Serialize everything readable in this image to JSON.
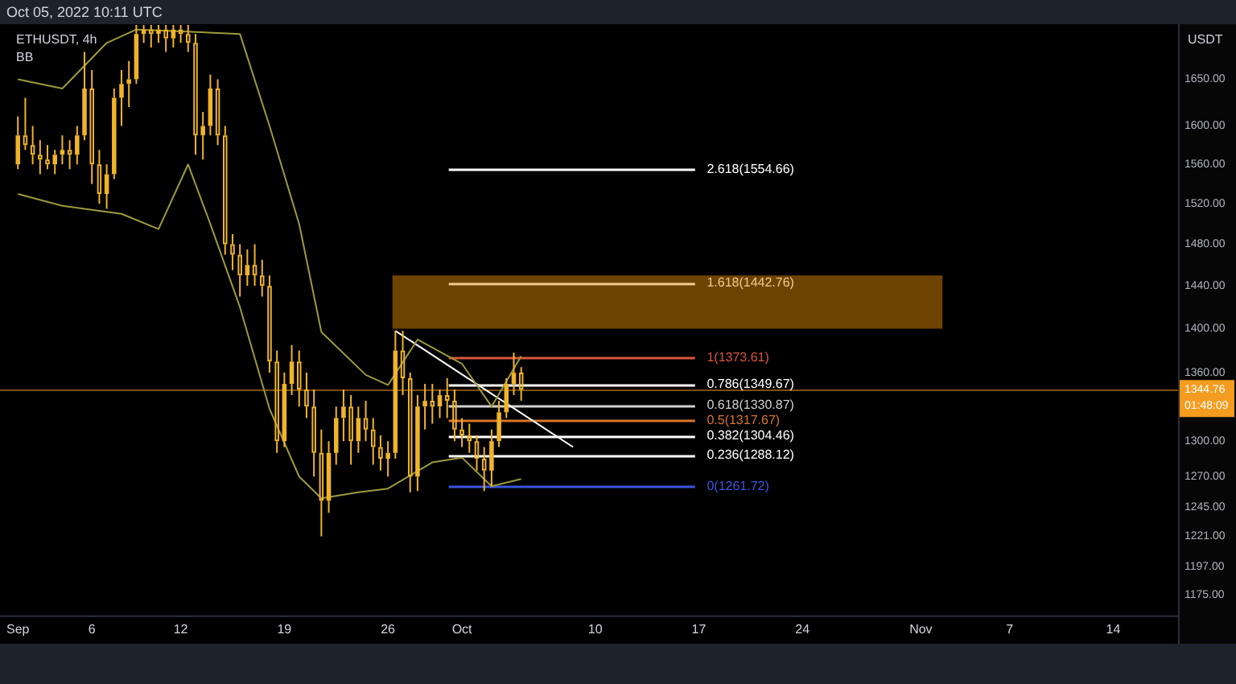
{
  "chart_data": {
    "type": "candlestick",
    "title": "ETHUSDT, 4h",
    "subtitle": "Oct 05, 2022 10:11 UTC",
    "ylabel": "USDT",
    "color": "#f0b429",
    "annotations": [
      "BB",
      "01:48:09"
    ],
    "x": [
      "2022-09-01T00:00",
      "2022-09-01T12:00",
      "2022-09-02T00:00",
      "2022-09-02T12:00",
      "2022-09-03T00:00",
      "2022-09-03T12:00",
      "2022-09-04T00:00",
      "2022-09-04T12:00",
      "2022-09-05T00:00",
      "2022-09-05T12:00",
      "2022-09-06T00:00",
      "2022-09-06T12:00",
      "2022-09-07T00:00",
      "2022-09-07T12:00",
      "2022-09-08T00:00",
      "2022-09-08T12:00",
      "2022-09-09T00:00",
      "2022-09-09T12:00",
      "2022-09-10T00:00",
      "2022-09-10T12:00",
      "2022-09-11T00:00",
      "2022-09-11T12:00",
      "2022-09-12T00:00",
      "2022-09-12T12:00",
      "2022-09-13T00:00",
      "2022-09-13T12:00",
      "2022-09-14T00:00",
      "2022-09-14T12:00",
      "2022-09-15T00:00",
      "2022-09-15T12:00",
      "2022-09-16T00:00",
      "2022-09-16T12:00",
      "2022-09-17T00:00",
      "2022-09-17T12:00",
      "2022-09-18T00:00",
      "2022-09-18T12:00",
      "2022-09-19T00:00",
      "2022-09-19T12:00",
      "2022-09-20T00:00",
      "2022-09-20T12:00",
      "2022-09-21T00:00",
      "2022-09-21T12:00",
      "2022-09-22T00:00",
      "2022-09-22T12:00",
      "2022-09-23T00:00",
      "2022-09-23T12:00",
      "2022-09-24T00:00",
      "2022-09-24T12:00",
      "2022-09-25T00:00",
      "2022-09-25T12:00",
      "2022-09-26T00:00",
      "2022-09-26T12:00",
      "2022-09-27T00:00",
      "2022-09-27T12:00",
      "2022-09-28T00:00",
      "2022-09-28T12:00",
      "2022-09-29T00:00",
      "2022-09-29T12:00",
      "2022-09-30T00:00",
      "2022-09-30T12:00",
      "2022-10-01T00:00",
      "2022-10-01T12:00",
      "2022-10-02T00:00",
      "2022-10-02T12:00",
      "2022-10-03T00:00",
      "2022-10-03T12:00",
      "2022-10-04T00:00",
      "2022-10-04T12:00",
      "2022-10-05T00:00"
    ],
    "ohlc": [
      [
        1560,
        1610,
        1555,
        1590
      ],
      [
        1590,
        1630,
        1575,
        1580
      ],
      [
        1580,
        1600,
        1560,
        1570
      ],
      [
        1570,
        1585,
        1550,
        1565
      ],
      [
        1565,
        1580,
        1555,
        1560
      ],
      [
        1560,
        1575,
        1550,
        1570
      ],
      [
        1570,
        1590,
        1560,
        1575
      ],
      [
        1575,
        1585,
        1555,
        1570
      ],
      [
        1570,
        1600,
        1560,
        1590
      ],
      [
        1590,
        1680,
        1585,
        1640
      ],
      [
        1640,
        1660,
        1540,
        1560
      ],
      [
        1560,
        1575,
        1520,
        1530
      ],
      [
        1530,
        1560,
        1515,
        1550
      ],
      [
        1550,
        1640,
        1545,
        1630
      ],
      [
        1630,
        1660,
        1600,
        1645
      ],
      [
        1645,
        1670,
        1620,
        1650
      ],
      [
        1650,
        1710,
        1645,
        1700
      ],
      [
        1700,
        1710,
        1690,
        1705
      ],
      [
        1705,
        1710,
        1685,
        1700
      ],
      [
        1700,
        1710,
        1690,
        1705
      ],
      [
        1705,
        1710,
        1680,
        1695
      ],
      [
        1695,
        1710,
        1685,
        1705
      ],
      [
        1705,
        1710,
        1690,
        1700
      ],
      [
        1700,
        1710,
        1680,
        1690
      ],
      [
        1690,
        1700,
        1570,
        1590
      ],
      [
        1590,
        1615,
        1565,
        1600
      ],
      [
        1600,
        1655,
        1590,
        1640
      ],
      [
        1640,
        1650,
        1580,
        1590
      ],
      [
        1590,
        1600,
        1470,
        1480
      ],
      [
        1480,
        1490,
        1455,
        1470
      ],
      [
        1470,
        1480,
        1430,
        1450
      ],
      [
        1450,
        1475,
        1440,
        1460
      ],
      [
        1460,
        1480,
        1440,
        1450
      ],
      [
        1450,
        1465,
        1430,
        1440
      ],
      [
        1440,
        1450,
        1360,
        1370
      ],
      [
        1370,
        1380,
        1290,
        1300
      ],
      [
        1300,
        1360,
        1295,
        1350
      ],
      [
        1350,
        1385,
        1340,
        1370
      ],
      [
        1370,
        1380,
        1330,
        1345
      ],
      [
        1345,
        1360,
        1320,
        1330
      ],
      [
        1330,
        1345,
        1270,
        1290
      ],
      [
        1290,
        1310,
        1221,
        1250
      ],
      [
        1250,
        1300,
        1240,
        1290
      ],
      [
        1290,
        1330,
        1280,
        1320
      ],
      [
        1320,
        1345,
        1300,
        1330
      ],
      [
        1330,
        1340,
        1280,
        1300
      ],
      [
        1300,
        1330,
        1290,
        1320
      ],
      [
        1320,
        1335,
        1300,
        1310
      ],
      [
        1310,
        1320,
        1280,
        1295
      ],
      [
        1295,
        1305,
        1275,
        1285
      ],
      [
        1285,
        1300,
        1270,
        1290
      ],
      [
        1290,
        1398,
        1285,
        1380
      ],
      [
        1380,
        1398,
        1340,
        1355
      ],
      [
        1355,
        1360,
        1257,
        1270
      ],
      [
        1270,
        1340,
        1258,
        1330
      ],
      [
        1330,
        1350,
        1310,
        1335
      ],
      [
        1335,
        1350,
        1315,
        1330
      ],
      [
        1330,
        1345,
        1320,
        1340
      ],
      [
        1340,
        1355,
        1320,
        1335
      ],
      [
        1335,
        1345,
        1300,
        1310
      ],
      [
        1310,
        1320,
        1295,
        1305
      ],
      [
        1305,
        1315,
        1290,
        1300
      ],
      [
        1300,
        1305,
        1275,
        1285
      ],
      [
        1285,
        1295,
        1258,
        1275
      ],
      [
        1275,
        1310,
        1262,
        1300
      ],
      [
        1300,
        1335,
        1295,
        1325
      ],
      [
        1325,
        1355,
        1320,
        1350
      ],
      [
        1350,
        1378,
        1340,
        1360
      ],
      [
        1360,
        1365,
        1335,
        1344.76
      ]
    ],
    "series": [
      {
        "type": "line",
        "color": "#9c9a3c",
        "x": [
          "2022-09-01",
          "2022-09-04",
          "2022-09-07",
          "2022-09-09",
          "2022-09-16",
          "2022-09-18",
          "2022-09-20",
          "2022-09-21T12:00",
          "2022-09-24T12:00",
          "2022-09-26",
          "2022-09-28",
          "2022-10-01",
          "2022-10-03",
          "2022-10-05"
        ],
        "values": [
          1650,
          1640,
          1690,
          1705,
          1700,
          1600,
          1500,
          1397,
          1358,
          1349,
          1390,
          1368,
          1330,
          1375
        ]
      },
      {
        "type": "line",
        "color": "#9c9a3c",
        "x": [
          "2022-09-01",
          "2022-09-04",
          "2022-09-08",
          "2022-09-10T12:00",
          "2022-09-12T12:00",
          "2022-09-14",
          "2022-09-16",
          "2022-09-18",
          "2022-09-20",
          "2022-09-21T12:00",
          "2022-09-24",
          "2022-09-26",
          "2022-09-29",
          "2022-10-01",
          "2022-10-03",
          "2022-10-05"
        ],
        "values": [
          1530,
          1518,
          1510,
          1495,
          1560,
          1500,
          1420,
          1328,
          1270,
          1252,
          1257,
          1260,
          1282,
          1286,
          1262,
          1268
        ]
      },
      {
        "type": "line",
        "color": "#ffffff",
        "x": [
          "2022-09-26T12:00",
          "2022-10-08T12:00"
        ],
        "values": [
          1398,
          1295
        ]
      }
    ],
    "ref_lines": [
      {
        "axis": "y",
        "value": 1344.76,
        "label": "1344.76",
        "color": "#f39c1f"
      },
      {
        "axis": "y",
        "value": 1554.66,
        "label": "2.618(1554.66)",
        "color": "#ffffff"
      },
      {
        "axis": "y",
        "value": 1442.76,
        "label": "1.618(1442.76)",
        "color": "#f5c98a"
      },
      {
        "axis": "y",
        "value": 1373.61,
        "label": "1(1373.61)",
        "color": "#d9553f"
      },
      {
        "axis": "y",
        "value": 1349.67,
        "label": "0.786(1349.67)",
        "color": "#ffffff"
      },
      {
        "axis": "y",
        "value": 1330.87,
        "label": "0.618(1330.87)",
        "color": "#d0d0d0"
      },
      {
        "axis": "y",
        "value": 1317.67,
        "label": "0.5(1317.67)",
        "color": "#d9742a"
      },
      {
        "axis": "y",
        "value": 1304.46,
        "label": "0.382(1304.46)",
        "color": "#ffffff"
      },
      {
        "axis": "y",
        "value": 1288.12,
        "label": "0.236(1288.12)",
        "color": "#ffffff"
      },
      {
        "axis": "y",
        "value": 1261.72,
        "label": "0(1261.72)",
        "color": "#3a55e0"
      }
    ],
    "bands": [
      {
        "axis": "y",
        "from": 1400,
        "to": 1450,
        "color": "#6e4300"
      }
    ],
    "log": "y",
    "grid": false,
    "legend": false,
    "xlim": [
      "2022-08-30T19:00",
      "2022-11-18T09:00"
    ],
    "xticks": [
      {
        "value": "2022-09-01",
        "label": "Sep"
      },
      {
        "value": "2022-09-06",
        "label": "6"
      },
      {
        "value": "2022-09-12",
        "label": "12"
      },
      {
        "value": "2022-09-19",
        "label": "19"
      },
      {
        "value": "2022-09-26",
        "label": "26"
      },
      {
        "value": "2022-10-01",
        "label": "Oct"
      },
      {
        "value": "2022-10-10",
        "label": "10"
      },
      {
        "value": "2022-10-17",
        "label": "17"
      },
      {
        "value": "2022-10-24",
        "label": "24"
      },
      {
        "value": "2022-11-01",
        "label": "Nov"
      },
      {
        "value": "2022-11-07",
        "label": "7"
      },
      {
        "value": "2022-11-14",
        "label": "14"
      }
    ],
    "ylim": [
      1159,
      1711
    ],
    "yticks": [
      {
        "value": 1175,
        "label": "1175.00"
      },
      {
        "value": 1197,
        "label": "1197.00"
      },
      {
        "value": 1221,
        "label": "1221.00"
      },
      {
        "value": 1245,
        "label": "1245.00"
      },
      {
        "value": 1270,
        "label": "1270.00"
      },
      {
        "value": 1300,
        "label": "1300.00"
      },
      {
        "value": 1360,
        "label": "1360.00"
      },
      {
        "value": 1400,
        "label": "1400.00"
      },
      {
        "value": 1440,
        "label": "1440.00"
      },
      {
        "value": 1480,
        "label": "1480.00"
      },
      {
        "value": 1520,
        "label": "1520.00"
      },
      {
        "value": 1560,
        "label": "1560.00"
      },
      {
        "value": 1600,
        "label": "1600.00"
      },
      {
        "value": 1650,
        "label": "1650.00"
      }
    ]
  }
}
